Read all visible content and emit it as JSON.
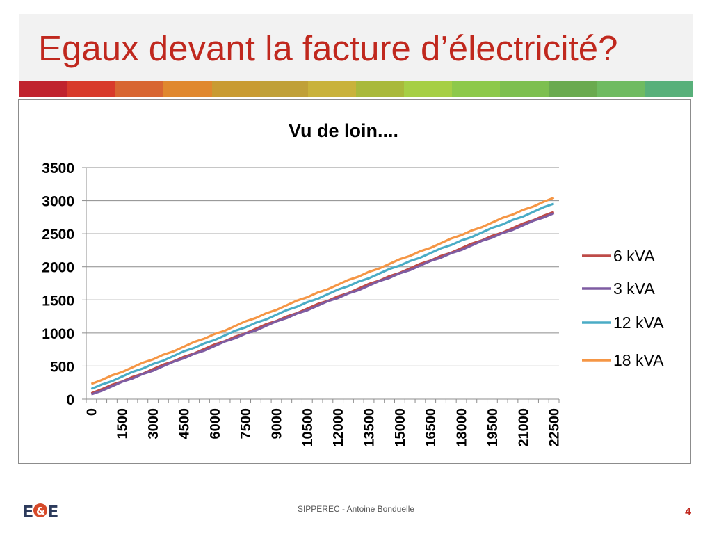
{
  "slide": {
    "title": "Egaux devant la facture d’électricité?",
    "footer": "SIPPEREC - Antoine Bonduelle",
    "page_number": "4",
    "logo_text": "E&E"
  },
  "strip_colors": [
    "#c0232e",
    "#d83a2b",
    "#d86632",
    "#e0882e",
    "#c99b32",
    "#c0a038",
    "#c9b23b",
    "#a9b93b",
    "#a6cf45",
    "#8dc94a",
    "#7dbf4f",
    "#6aaa4f",
    "#6fbb61",
    "#58b07a"
  ],
  "chart_data": {
    "type": "line",
    "title": "Vu de loin....",
    "xlabel": "",
    "ylabel": "",
    "ylim": [
      0,
      3500
    ],
    "yticks": [
      0,
      500,
      1000,
      1500,
      2000,
      2500,
      3000,
      3500
    ],
    "xticks": [
      "0",
      "1500",
      "3000",
      "4500",
      "6000",
      "7500",
      "9000",
      "10500",
      "12000",
      "13500",
      "15000",
      "16500",
      "18000",
      "19500",
      "21000",
      "22500"
    ],
    "x": [
      0,
      22500
    ],
    "grid": "horizontal",
    "legend_position": "right",
    "series": [
      {
        "name": "6 kVA",
        "color": "#be4b48",
        "values": [
          88,
          2830
        ]
      },
      {
        "name": "3 kVA",
        "color": "#7e5ca2",
        "values": [
          72,
          2810
        ]
      },
      {
        "name": "12 kVA",
        "color": "#4aacc5",
        "values": [
          155,
          2955
        ]
      },
      {
        "name": "18 kVA",
        "color": "#f59645",
        "values": [
          230,
          3045
        ]
      }
    ]
  }
}
